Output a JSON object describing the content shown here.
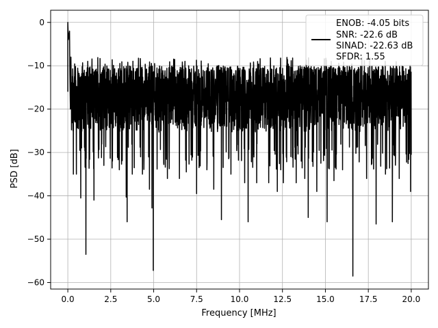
{
  "chart_data": {
    "type": "line",
    "title": "",
    "xlabel": "Frequency [MHz]",
    "ylabel": "PSD [dB]",
    "xlim": [
      -1.0,
      21.0
    ],
    "ylim": [
      -61.5,
      2.8
    ],
    "xticks": [
      0.0,
      2.5,
      5.0,
      7.5,
      10.0,
      12.5,
      15.0,
      17.5,
      20.0
    ],
    "xtick_labels": [
      "0.0",
      "2.5",
      "5.0",
      "7.5",
      "10.0",
      "12.5",
      "15.0",
      "17.5",
      "20.0"
    ],
    "yticks": [
      0,
      -10,
      -20,
      -30,
      -40,
      -50,
      -60
    ],
    "ytick_labels": [
      "0",
      "−10",
      "−20",
      "−30",
      "−40",
      "−50",
      "−60"
    ],
    "grid": true,
    "legend": {
      "placement": "top-right",
      "lines": [
        "ENOB: -4.05 bits",
        "SNR: -22.6 dB",
        "SINAD: -22.63 dB",
        "SFDR: 1.55"
      ]
    },
    "series": [
      {
        "color": "#000000",
        "noise": {
          "x_start": 0.0,
          "x_end": 20.0,
          "upper_envelope_db": -10,
          "lower_envelope_db": -28,
          "mean_db": -18
        },
        "peaks": [
          {
            "x": 0.0,
            "y": 0.0
          },
          {
            "x": 0.03,
            "y": -4.0
          },
          {
            "x": 0.1,
            "y": -2.0
          }
        ],
        "dips": [
          {
            "x": 0.32,
            "y": -35
          },
          {
            "x": 0.5,
            "y": -35
          },
          {
            "x": 0.75,
            "y": -40.5
          },
          {
            "x": 1.05,
            "y": -53.5
          },
          {
            "x": 1.52,
            "y": -41
          },
          {
            "x": 2.1,
            "y": -33
          },
          {
            "x": 2.6,
            "y": -32
          },
          {
            "x": 3.0,
            "y": -34
          },
          {
            "x": 3.4,
            "y": -40.3
          },
          {
            "x": 3.45,
            "y": -46
          },
          {
            "x": 3.75,
            "y": -35
          },
          {
            "x": 4.35,
            "y": -35
          },
          {
            "x": 4.75,
            "y": -38.5
          },
          {
            "x": 4.9,
            "y": -42.8
          },
          {
            "x": 4.98,
            "y": -57.2
          },
          {
            "x": 5.8,
            "y": -36
          },
          {
            "x": 6.5,
            "y": -36
          },
          {
            "x": 6.9,
            "y": -34.5
          },
          {
            "x": 7.5,
            "y": -39.5
          },
          {
            "x": 8.1,
            "y": -34
          },
          {
            "x": 8.5,
            "y": -38.5
          },
          {
            "x": 8.95,
            "y": -45.5
          },
          {
            "x": 9.5,
            "y": -35
          },
          {
            "x": 10.3,
            "y": -37
          },
          {
            "x": 10.5,
            "y": -46
          },
          {
            "x": 11.0,
            "y": -37
          },
          {
            "x": 11.7,
            "y": -37
          },
          {
            "x": 12.2,
            "y": -39
          },
          {
            "x": 12.55,
            "y": -37
          },
          {
            "x": 13.3,
            "y": -37
          },
          {
            "x": 13.8,
            "y": -36
          },
          {
            "x": 14.0,
            "y": -45
          },
          {
            "x": 14.5,
            "y": -39
          },
          {
            "x": 15.1,
            "y": -46
          },
          {
            "x": 15.5,
            "y": -36.5
          },
          {
            "x": 16.0,
            "y": -34
          },
          {
            "x": 16.6,
            "y": -58.5
          },
          {
            "x": 17.4,
            "y": -36
          },
          {
            "x": 17.95,
            "y": -46.5
          },
          {
            "x": 18.5,
            "y": -35
          },
          {
            "x": 18.9,
            "y": -46
          },
          {
            "x": 19.3,
            "y": -36
          },
          {
            "x": 19.96,
            "y": -39
          }
        ]
      }
    ]
  }
}
